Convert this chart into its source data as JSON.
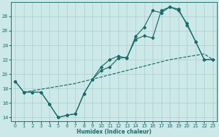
{
  "xlabel": "Humidex (Indice chaleur)",
  "bg_color": "#cce8e8",
  "line_color": "#1a6b6b",
  "grid_color": "#aacccc",
  "xlim": [
    -0.5,
    23.5
  ],
  "ylim": [
    13.5,
    30.0
  ],
  "yticks": [
    14,
    16,
    18,
    20,
    22,
    24,
    26,
    28
  ],
  "xticks": [
    0,
    1,
    2,
    3,
    4,
    5,
    6,
    7,
    8,
    9,
    10,
    11,
    12,
    13,
    14,
    15,
    16,
    17,
    18,
    19,
    20,
    21,
    22,
    23
  ],
  "line1_x": [
    0,
    1,
    2,
    3,
    4,
    5,
    6,
    7,
    8,
    9,
    10,
    11,
    12,
    13,
    14,
    15,
    16,
    17,
    18,
    19,
    20,
    21,
    22,
    23
  ],
  "line1_y": [
    19.0,
    17.5,
    17.5,
    17.5,
    15.8,
    14.0,
    14.3,
    14.5,
    17.3,
    19.3,
    20.5,
    21.0,
    22.2,
    22.3,
    24.8,
    25.3,
    25.0,
    28.8,
    29.3,
    29.0,
    26.8,
    24.5,
    22.0,
    22.0
  ],
  "line2_x": [
    0,
    1,
    2,
    3,
    4,
    5,
    6,
    7,
    8,
    9,
    10,
    11,
    12,
    13,
    14,
    15,
    16,
    17,
    18,
    19,
    20,
    21,
    22,
    23
  ],
  "line2_y": [
    19.0,
    17.5,
    17.5,
    17.5,
    15.8,
    14.0,
    14.3,
    14.5,
    17.3,
    19.3,
    21.0,
    22.0,
    22.5,
    22.2,
    25.2,
    26.5,
    28.8,
    28.5,
    29.3,
    28.8,
    27.0,
    24.5,
    22.0,
    22.0
  ],
  "line3_x": [
    1,
    2,
    3,
    4,
    5,
    6,
    7,
    8,
    9,
    10,
    11,
    12,
    13,
    14,
    15,
    16,
    17,
    18,
    19,
    20,
    21,
    22,
    23
  ],
  "line3_y": [
    17.5,
    17.7,
    17.9,
    18.1,
    18.3,
    18.5,
    18.7,
    19.0,
    19.3,
    19.6,
    19.9,
    20.2,
    20.5,
    20.8,
    21.1,
    21.4,
    21.7,
    22.0,
    22.2,
    22.4,
    22.6,
    22.8,
    22.0
  ],
  "xlabel_fontsize": 5.5,
  "tick_fontsize": 5,
  "linewidth": 0.9,
  "markersize": 2.0
}
